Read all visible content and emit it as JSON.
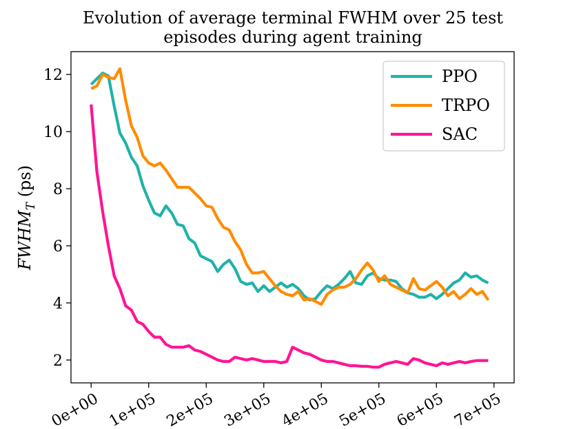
{
  "chart_data": {
    "type": "line",
    "title": [
      "Evolution of average terminal FWHM over 25 test",
      "episodes during agent training"
    ],
    "xlabel": "",
    "ylabel": "FWHM_T (ps)",
    "ylabel_main": "FWHM",
    "ylabel_sub": "T",
    "ylabel_unit": " (ps)",
    "xlim": [
      -35000,
      735000
    ],
    "ylim": [
      1.2,
      12.8
    ],
    "x_ticks": [
      0,
      100000,
      200000,
      300000,
      400000,
      500000,
      600000,
      700000
    ],
    "x_tick_labels": [
      "0e+00",
      "1e+05",
      "2e+05",
      "3e+05",
      "4e+05",
      "5e+05",
      "6e+05",
      "7e+05"
    ],
    "y_ticks": [
      2,
      4,
      6,
      8,
      10,
      12
    ],
    "y_tick_labels": [
      "2",
      "4",
      "6",
      "8",
      "10",
      "12"
    ],
    "legend_position": "top-right",
    "x": [
      0,
      10000,
      20000,
      30000,
      40000,
      50000,
      60000,
      70000,
      80000,
      90000,
      100000,
      110000,
      120000,
      130000,
      140000,
      150000,
      160000,
      170000,
      180000,
      190000,
      200000,
      210000,
      220000,
      230000,
      240000,
      250000,
      260000,
      270000,
      280000,
      290000,
      300000,
      310000,
      320000,
      330000,
      340000,
      350000,
      360000,
      370000,
      380000,
      390000,
      400000,
      410000,
      420000,
      430000,
      440000,
      450000,
      460000,
      470000,
      480000,
      490000,
      500000,
      510000,
      520000,
      530000,
      540000,
      550000,
      560000,
      570000,
      580000,
      590000,
      600000,
      610000,
      620000,
      630000,
      640000,
      650000,
      660000,
      670000,
      680000,
      690000
    ],
    "series": [
      {
        "name": "PPO",
        "color": "#20b2aa",
        "values": [
          11.65,
          11.85,
          12.05,
          11.95,
          10.9,
          9.95,
          9.6,
          9.1,
          8.8,
          8.1,
          7.6,
          7.15,
          7.05,
          7.4,
          7.15,
          6.75,
          6.7,
          6.25,
          6.1,
          5.65,
          5.55,
          5.45,
          5.1,
          5.35,
          5.5,
          5.2,
          4.75,
          4.65,
          4.7,
          4.4,
          4.6,
          4.4,
          4.55,
          4.7,
          4.55,
          4.65,
          4.5,
          4.25,
          4.1,
          4.15,
          4.4,
          4.6,
          4.5,
          4.65,
          4.85,
          5.1,
          4.7,
          4.65,
          4.95,
          5.05,
          4.85,
          4.8,
          4.8,
          4.75,
          4.5,
          4.35,
          4.3,
          4.2,
          4.2,
          4.3,
          4.15,
          4.3,
          4.5,
          4.7,
          4.8,
          5.05,
          4.9,
          4.95,
          4.8,
          4.7
        ]
      },
      {
        "name": "TRPO",
        "color": "#ff8c00",
        "values": [
          11.5,
          11.6,
          12.0,
          11.9,
          11.85,
          12.2,
          11.1,
          10.2,
          9.8,
          9.15,
          8.9,
          8.8,
          8.9,
          8.65,
          8.35,
          8.05,
          8.05,
          8.05,
          7.85,
          7.65,
          7.4,
          7.35,
          6.95,
          6.65,
          6.55,
          6.15,
          5.85,
          5.35,
          5.05,
          5.05,
          5.1,
          4.85,
          4.6,
          4.4,
          4.3,
          4.25,
          4.4,
          4.1,
          4.15,
          4.05,
          3.95,
          4.3,
          4.45,
          4.55,
          4.55,
          4.65,
          4.85,
          5.15,
          5.4,
          5.15,
          4.75,
          4.95,
          4.65,
          4.55,
          4.45,
          4.35,
          4.85,
          4.5,
          4.45,
          4.6,
          4.75,
          4.55,
          4.25,
          4.4,
          4.15,
          4.3,
          4.5,
          4.3,
          4.4,
          4.1
        ]
      },
      {
        "name": "SAC",
        "color": "#ff1493",
        "values": [
          10.95,
          8.6,
          7.2,
          6.0,
          4.95,
          4.5,
          3.9,
          3.75,
          3.35,
          3.25,
          3.0,
          2.8,
          2.8,
          2.55,
          2.45,
          2.45,
          2.45,
          2.5,
          2.35,
          2.3,
          2.2,
          2.1,
          2.0,
          1.95,
          1.95,
          2.1,
          2.05,
          2.0,
          2.05,
          2.0,
          1.95,
          1.95,
          1.95,
          1.9,
          1.95,
          2.45,
          2.35,
          2.25,
          2.2,
          2.1,
          2.0,
          1.95,
          1.95,
          1.9,
          1.85,
          1.8,
          1.8,
          1.78,
          1.78,
          1.75,
          1.75,
          1.85,
          1.9,
          1.95,
          1.9,
          1.85,
          2.05,
          2.0,
          1.9,
          1.85,
          1.8,
          1.9,
          1.85,
          1.9,
          1.95,
          1.9,
          1.95,
          1.98,
          1.98,
          1.98
        ]
      }
    ]
  }
}
